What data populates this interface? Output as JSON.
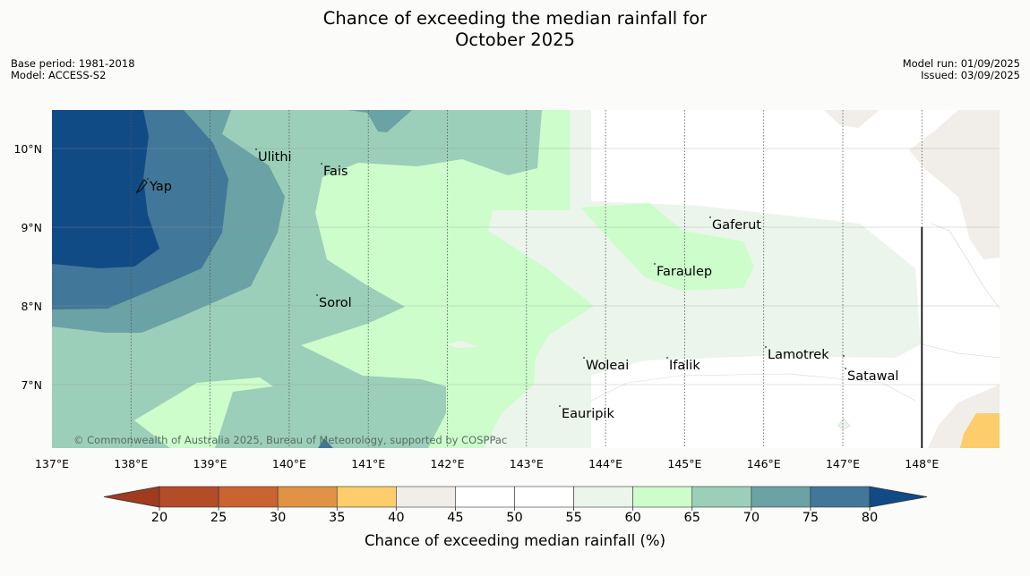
{
  "header": {
    "title_line1": "Chance of exceeding the median rainfall for",
    "title_line2": "October 2025",
    "base_period": "Base period: 1981-2018",
    "model": "Model: ACCESS-S2",
    "model_run": "Model run: 01/09/2025",
    "issued": "Issued: 03/09/2025"
  },
  "map": {
    "attribution": "© Commonwealth of Australia 2025, Bureau of Meteorology, supported by COSPPac",
    "latitude_labels": [
      "10°N",
      "9°N",
      "8°N",
      "7°N"
    ],
    "longitude_labels": [
      "137°E",
      "138°E",
      "139°E",
      "140°E",
      "141°E",
      "142°E",
      "143°E",
      "144°E",
      "145°E",
      "146°E",
      "147°E",
      "148°E"
    ],
    "places": [
      "Yap",
      "Ulithi",
      "Fais",
      "Gaferut",
      "Faraulep",
      "Sorol",
      "Woleai",
      "Ifalik",
      "Lamotrek",
      "Satawal",
      "Eauripik"
    ]
  },
  "colorbar": {
    "title": "Chance of exceeding median rainfall (%)",
    "tick_labels": [
      "20",
      "25",
      "30",
      "35",
      "40",
      "45",
      "50",
      "55",
      "60",
      "65",
      "70",
      "75",
      "80"
    ],
    "colors": [
      "#a03b20",
      "#b44c28",
      "#cb6231",
      "#e09245",
      "#fdcc6b",
      "#f1ede8",
      "#ffffff",
      "#ffffff",
      "#ebf5eb",
      "#ccfdcb",
      "#9bcfb9",
      "#6aa2a5",
      "#417798",
      "#114b86"
    ]
  }
}
